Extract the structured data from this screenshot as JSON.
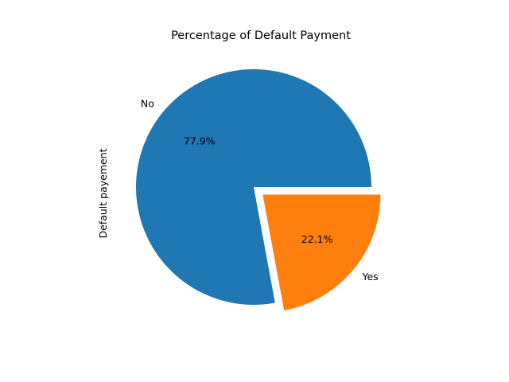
{
  "chart_data": {
    "type": "pie",
    "title": "Percentage of Default Payment",
    "ylabel": "Default payement",
    "categories": [
      "No",
      "Yes"
    ],
    "values": [
      77.9,
      22.1
    ],
    "percent_labels": [
      "77.9%",
      "22.1%"
    ],
    "explode": [
      0,
      0.1
    ],
    "colors": [
      "#1f77b4",
      "#ff7f0e"
    ],
    "start_angle": 0,
    "direction": "counterclockwise"
  }
}
